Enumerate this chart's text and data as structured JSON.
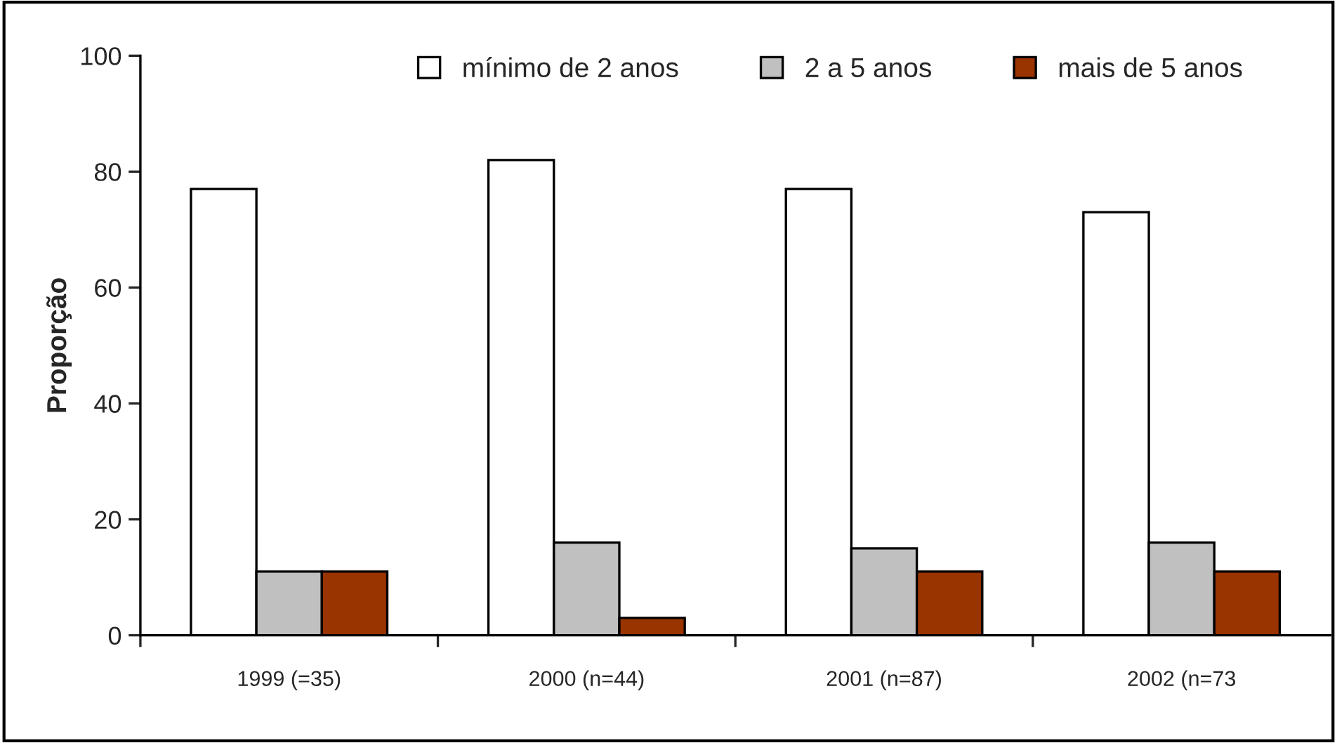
{
  "chart_data": {
    "type": "bar",
    "ylabel": "Proporção",
    "categories": [
      "1999 (=35)",
      "2000 (n=44)",
      "2001 (n=87)",
      "2002 (n=73"
    ],
    "series": [
      {
        "name": "mínimo de 2 anos",
        "color": "#ffffff",
        "values": [
          77,
          82,
          77,
          73
        ]
      },
      {
        "name": "2 a 5 anos",
        "color": "#c0c0c0",
        "values": [
          11,
          16,
          15,
          16
        ]
      },
      {
        "name": "mais de 5 anos",
        "color": "#993300",
        "values": [
          11,
          3,
          11,
          11
        ]
      }
    ],
    "ylim": [
      0,
      100
    ],
    "yticks": [
      0,
      20,
      40,
      60,
      80,
      100
    ],
    "grid": false,
    "legend": "top"
  }
}
